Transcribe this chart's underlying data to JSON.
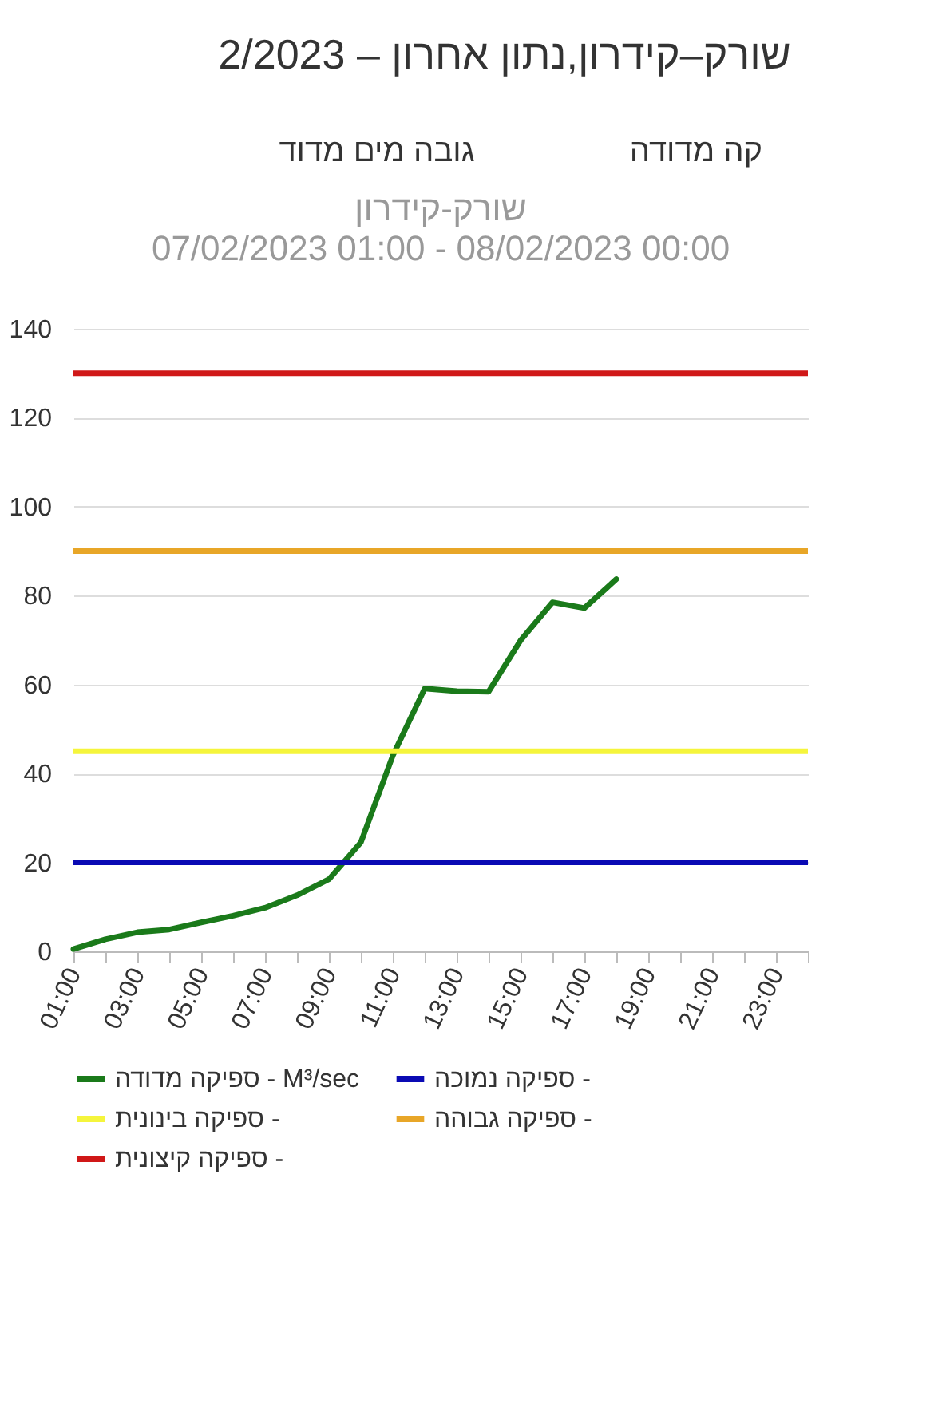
{
  "chart_data": {
    "type": "line",
    "title": "שורק-קידרון",
    "subtitle": "07/02/2023 01:00  -  08/02/2023 00:00",
    "annotations": [
      "שורק–קידרון,נתון אחרון – 2/2023",
      "קה מדודה",
      "גובה מים מדוד"
    ],
    "x": [
      1,
      2,
      3,
      4,
      5,
      6,
      7,
      8,
      9,
      10,
      11,
      12,
      13,
      14,
      15,
      16,
      17,
      18
    ],
    "series": [
      {
        "name": "ספיקה מדודה - M³/sec",
        "color": "#1a7a1a",
        "values": [
          0.5,
          2.7,
          4.3,
          4.9,
          6.5,
          8.0,
          9.8,
          12.6,
          16.2,
          24.5,
          44,
          59.1,
          58.5,
          58.4,
          69.9,
          78.5,
          77.2,
          83.7
        ]
      }
    ],
    "ref_lines": [
      {
        "axis": "y",
        "value": 20,
        "label": "ספיקה נמוכה -",
        "color": "#0a0ab4"
      },
      {
        "axis": "y",
        "value": 45,
        "label": "ספיקה בינונית -",
        "color": "#f5f53c"
      },
      {
        "axis": "y",
        "value": 90,
        "label": "ספיקה גבוהה -",
        "color": "#e8a628"
      },
      {
        "axis": "y",
        "value": 130,
        "label": "ספיקה קיצונית -",
        "color": "#d01818"
      }
    ],
    "xlim": [
      1,
      24
    ],
    "xticks": [
      {
        "value": 1,
        "label": "01:00"
      },
      {
        "value": 2,
        "label": null
      },
      {
        "value": 3,
        "label": "03:00"
      },
      {
        "value": 4,
        "label": null
      },
      {
        "value": 5,
        "label": "05:00"
      },
      {
        "value": 6,
        "label": null
      },
      {
        "value": 7,
        "label": "07:00"
      },
      {
        "value": 8,
        "label": null
      },
      {
        "value": 9,
        "label": "09:00"
      },
      {
        "value": 10,
        "label": null
      },
      {
        "value": 11,
        "label": "11:00"
      },
      {
        "value": 12,
        "label": null
      },
      {
        "value": 13,
        "label": "13:00"
      },
      {
        "value": 14,
        "label": null
      },
      {
        "value": 15,
        "label": "15:00"
      },
      {
        "value": 16,
        "label": null
      },
      {
        "value": 17,
        "label": "17:00"
      },
      {
        "value": 18,
        "label": null
      },
      {
        "value": 19,
        "label": "19:00"
      },
      {
        "value": 20,
        "label": null
      },
      {
        "value": 21,
        "label": "21:00"
      },
      {
        "value": 22,
        "label": null
      },
      {
        "value": 23,
        "label": "23:00"
      },
      {
        "value": 24,
        "label": null
      }
    ],
    "ylim": [
      0,
      140
    ],
    "yticks": [
      0,
      20,
      40,
      60,
      80,
      100,
      120,
      140
    ],
    "grid": "y",
    "legend": "bottom"
  }
}
